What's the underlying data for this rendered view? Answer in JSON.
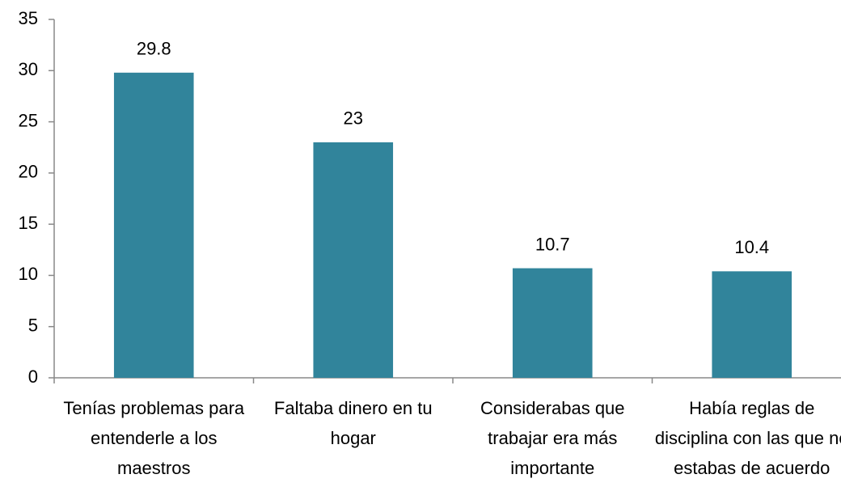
{
  "chart_data": {
    "type": "bar",
    "categories": [
      "Tenías problemas para entenderle a los maestros",
      "Faltaba dinero en tu hogar",
      "Considerabas que trabajar era más importante",
      "Había reglas de disciplina con las que no estabas de acuerdo"
    ],
    "values": [
      29.8,
      23,
      10.7,
      10.4
    ],
    "color": "#31849b",
    "ylim": [
      0,
      35
    ],
    "yticks": [
      0,
      5,
      10,
      15,
      20,
      25,
      30,
      35
    ],
    "grid": false
  }
}
